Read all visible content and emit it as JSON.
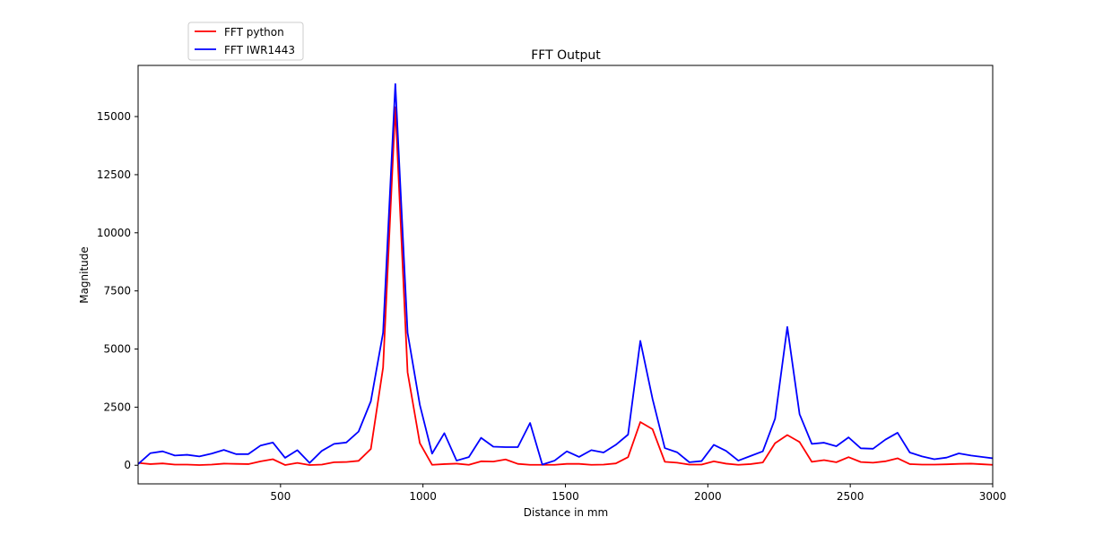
{
  "chart_data": {
    "type": "line",
    "title": "FFT Output",
    "xlabel": "Distance in mm",
    "ylabel": "Magnitude",
    "xlim": [
      0,
      3000
    ],
    "ylim": [
      -800,
      17200
    ],
    "xticks": [
      500,
      1000,
      1500,
      2000,
      2500,
      3000
    ],
    "yticks": [
      0,
      2500,
      5000,
      7500,
      10000,
      12500,
      15000
    ],
    "grid": false,
    "legend_position": "upper-left-outside",
    "series": [
      {
        "name": "FFT python",
        "color": "#ff0000",
        "x": [
          0,
          43,
          86,
          129,
          172,
          215,
          258,
          301,
          344,
          387,
          430,
          473,
          516,
          559,
          602,
          645,
          688,
          731,
          774,
          817,
          860,
          903,
          946,
          989,
          1032,
          1075,
          1118,
          1161,
          1204,
          1247,
          1290,
          1333,
          1376,
          1419,
          1462,
          1505,
          1548,
          1591,
          1634,
          1677,
          1720,
          1763,
          1806,
          1849,
          1892,
          1935,
          1978,
          2021,
          2064,
          2107,
          2150,
          2193,
          2236,
          2279,
          2322,
          2365,
          2408,
          2451,
          2494,
          2537,
          2580,
          2623,
          2666,
          2709,
          2752,
          2795,
          2838,
          2881,
          2924,
          2967,
          3000
        ],
        "y": [
          100,
          50,
          80,
          30,
          30,
          10,
          30,
          70,
          60,
          50,
          170,
          260,
          10,
          100,
          10,
          30,
          130,
          140,
          190,
          700,
          4200,
          15400,
          4000,
          950,
          20,
          50,
          70,
          20,
          170,
          160,
          250,
          60,
          20,
          20,
          20,
          60,
          60,
          20,
          30,
          80,
          350,
          1860,
          1550,
          150,
          110,
          30,
          30,
          170,
          70,
          20,
          50,
          120,
          950,
          1300,
          1000,
          150,
          220,
          130,
          350,
          140,
          110,
          170,
          300,
          50,
          30,
          30,
          40,
          60,
          70,
          40,
          20
        ]
      },
      {
        "name": "FFT IWR1443",
        "color": "#0000ff",
        "x": [
          0,
          43,
          86,
          129,
          172,
          215,
          258,
          301,
          344,
          387,
          430,
          473,
          516,
          559,
          602,
          645,
          688,
          731,
          774,
          817,
          860,
          903,
          946,
          989,
          1032,
          1075,
          1118,
          1161,
          1204,
          1247,
          1290,
          1333,
          1376,
          1419,
          1462,
          1505,
          1548,
          1591,
          1634,
          1677,
          1720,
          1763,
          1806,
          1849,
          1892,
          1935,
          1978,
          2021,
          2064,
          2107,
          2150,
          2193,
          2236,
          2279,
          2322,
          2365,
          2408,
          2451,
          2494,
          2537,
          2580,
          2623,
          2666,
          2709,
          2752,
          2795,
          2838,
          2881,
          2924,
          2967,
          3000
        ],
        "y": [
          50,
          520,
          600,
          420,
          450,
          380,
          500,
          660,
          480,
          480,
          850,
          980,
          320,
          650,
          100,
          620,
          920,
          980,
          1450,
          2750,
          5700,
          16400,
          5700,
          2600,
          500,
          1380,
          200,
          350,
          1180,
          800,
          780,
          780,
          1820,
          30,
          200,
          600,
          360,
          650,
          550,
          880,
          1320,
          5350,
          2850,
          740,
          560,
          130,
          180,
          880,
          620,
          200,
          400,
          600,
          2000,
          5950,
          2200,
          920,
          970,
          820,
          1200,
          730,
          710,
          1100,
          1400,
          550,
          380,
          260,
          330,
          510,
          420,
          350,
          300
        ]
      }
    ]
  }
}
